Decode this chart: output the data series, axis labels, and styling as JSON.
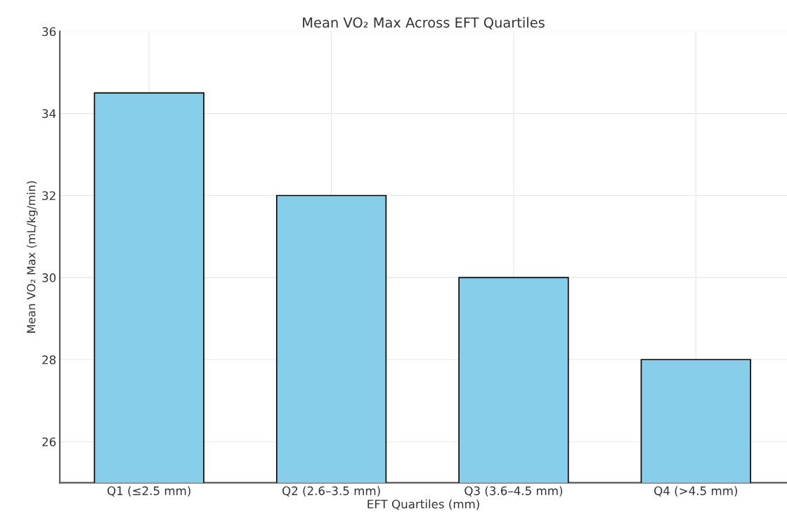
{
  "chart_data": {
    "type": "bar",
    "title": "Mean VO₂ Max Across EFT Quartiles",
    "xlabel": "EFT Quartiles (mm)",
    "ylabel": "Mean VO₂ Max (mL/kg/min)",
    "categories": [
      "Q1 (≤2.5 mm)",
      "Q2 (2.6–3.5 mm)",
      "Q3 (3.6–4.5 mm)",
      "Q4 (>4.5 mm)"
    ],
    "values": [
      34.5,
      32.0,
      30.0,
      28.0
    ],
    "color": "#87ceeb",
    "ylim": [
      25,
      36
    ],
    "yticks": [
      26,
      28,
      30,
      32,
      34,
      36
    ],
    "grid": true
  }
}
